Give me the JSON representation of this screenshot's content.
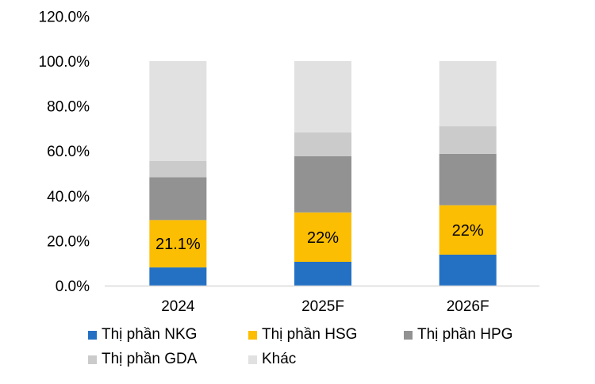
{
  "chart_data": {
    "type": "bar",
    "stacked": true,
    "title": "",
    "xlabel": "",
    "ylabel": "",
    "categories": [
      "2024",
      "2025F",
      "2026F"
    ],
    "ylim": [
      0,
      120
    ],
    "yticks": [
      0,
      20,
      40,
      60,
      80,
      100,
      120
    ],
    "ytick_labels": [
      "0.0%",
      "20.0%",
      "40.0%",
      "60.0%",
      "80.0%",
      "100.0%",
      "120.0%"
    ],
    "grid": false,
    "legend_position": "bottom",
    "series": [
      {
        "name": "Thị phần NKG",
        "color": "#2471C4",
        "values": [
          8.1,
          10.6,
          13.8
        ]
      },
      {
        "name": "Thị phần HSG",
        "color": "#FCBE02",
        "values": [
          21.1,
          22.0,
          22.0
        ],
        "data_labels": [
          "21.1%",
          "22%",
          "22%"
        ]
      },
      {
        "name": "Thị phần HPG",
        "color": "#929292",
        "values": [
          19.1,
          25.0,
          22.9
        ]
      },
      {
        "name": "Thị phần GDA",
        "color": "#CBCBCB",
        "values": [
          7.2,
          10.6,
          12.3
        ]
      },
      {
        "name": "Khác",
        "color": "#E1E1E1",
        "values": [
          44.5,
          31.8,
          29.0
        ]
      }
    ]
  }
}
